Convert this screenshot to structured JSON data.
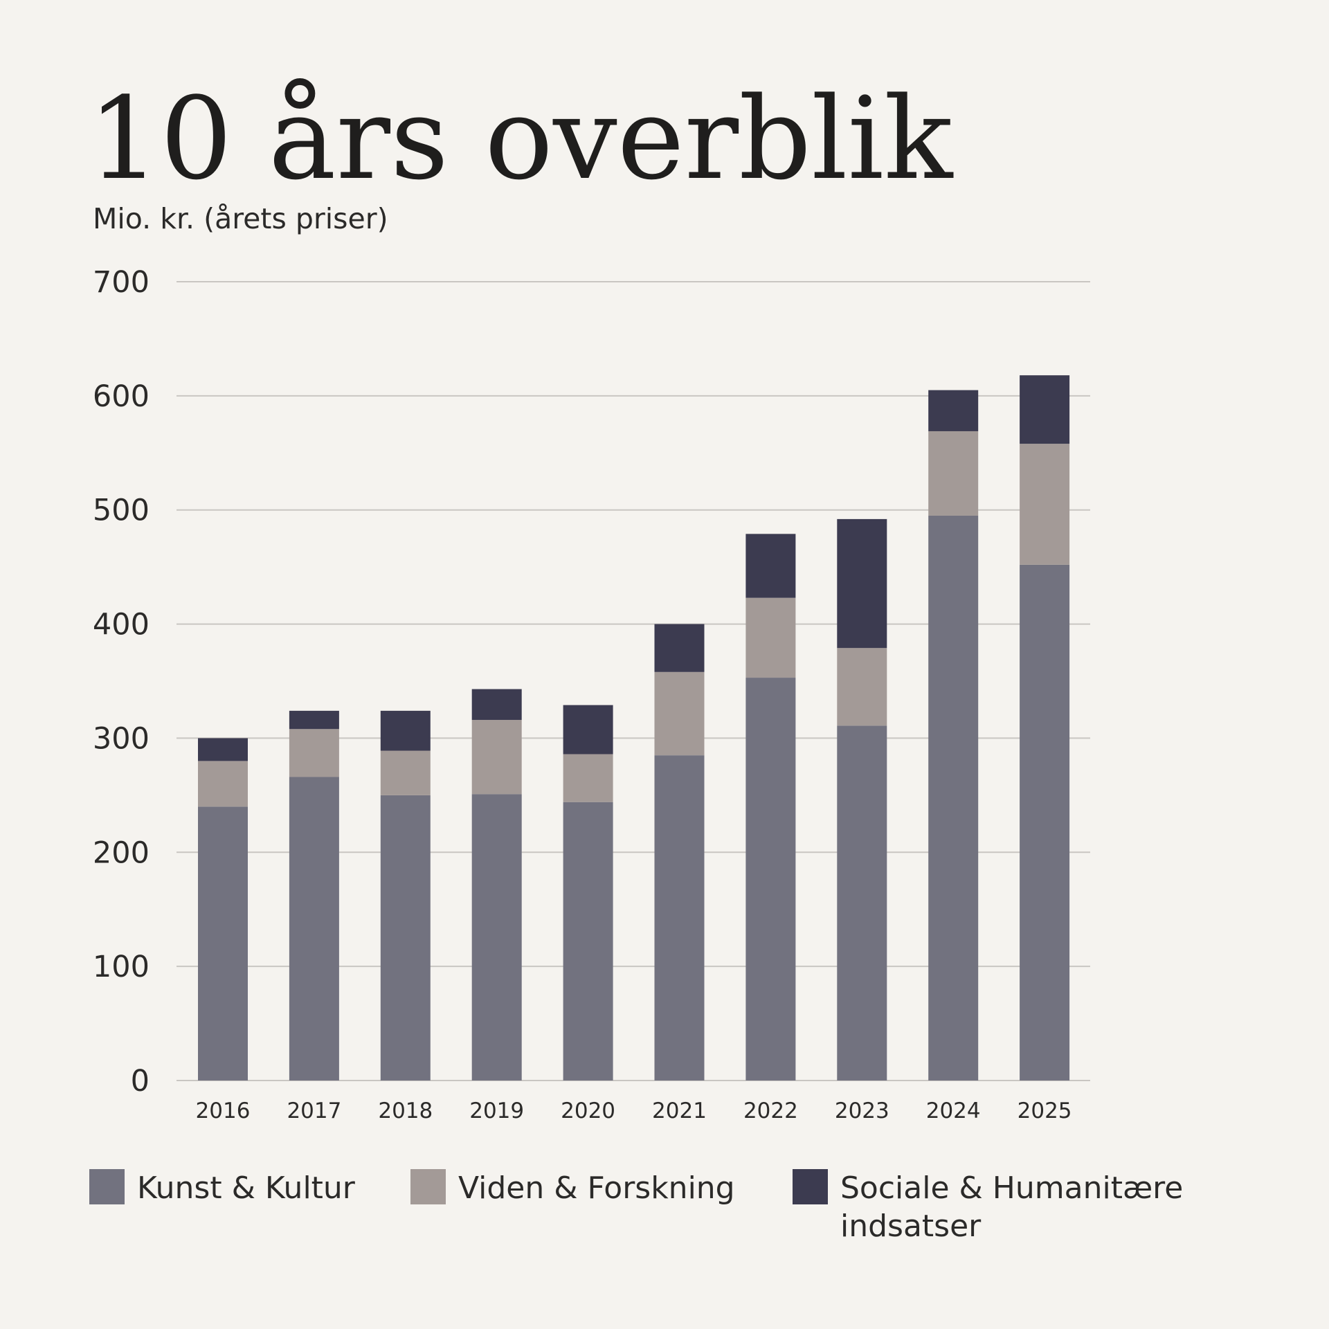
{
  "chart_data": {
    "type": "bar",
    "stacked": true,
    "title": "10 års overblik",
    "subtitle": "Mio. kr. (årets priser)",
    "xlabel": "",
    "ylabel": "",
    "ylim": [
      0,
      700
    ],
    "yticks": [
      "0",
      "100",
      "200",
      "300",
      "400",
      "500",
      "600",
      "700"
    ],
    "categories": [
      "2016",
      "2017",
      "2018",
      "2019",
      "2020",
      "2021",
      "2022",
      "2023",
      "2024",
      "2025"
    ],
    "series": [
      {
        "name": "Kunst & Kultur",
        "color": "#72727f",
        "values": [
          240,
          266,
          250,
          251,
          244,
          285,
          353,
          311,
          495,
          452
        ]
      },
      {
        "name": "Viden & Forskning",
        "color": "#a39a97",
        "values": [
          40,
          42,
          39,
          65,
          42,
          73,
          70,
          68,
          74,
          106
        ]
      },
      {
        "name": "Sociale & Humanitære indsatser",
        "color": "#3c3b50",
        "values": [
          20,
          16,
          35,
          27,
          43,
          42,
          56,
          113,
          36,
          60
        ]
      }
    ],
    "grid": true,
    "legend_position": "bottom"
  }
}
